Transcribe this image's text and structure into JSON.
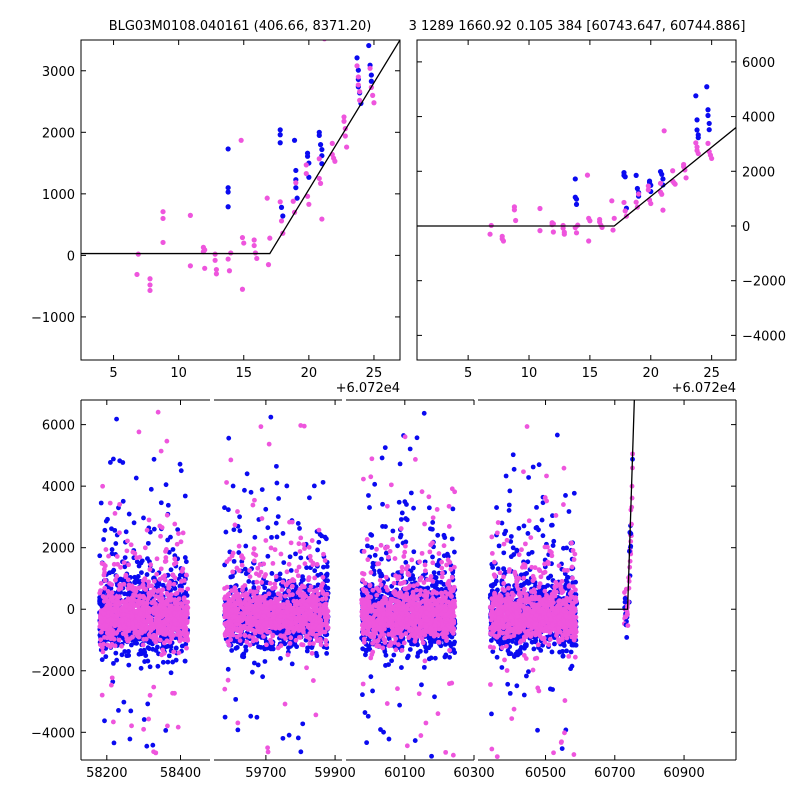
{
  "title": {
    "left": "BLG03M0108.040161 (406.66, 8371.20)",
    "right": "3 1289 1660.92 0.105 384 [60743.647, 60744.886]"
  },
  "colors": {
    "series_a": "#0a0af0",
    "series_b": "#ee55dd",
    "model": "#000000"
  },
  "chart_data": [
    {
      "type": "scatter",
      "panel": "top-left zoom",
      "xlim": [
        2.5,
        27
      ],
      "ylim": [
        -1700,
        3500
      ],
      "x_offset_label": "+6.072e4",
      "xticks": [
        5,
        10,
        15,
        20,
        25
      ],
      "yticks": [
        -1000,
        0,
        1000,
        2000,
        3000
      ],
      "ytick_side": "left",
      "model": {
        "x": [
          2.5,
          17,
          27
        ],
        "y": [
          30,
          30,
          3500
        ]
      },
      "series": [
        {
          "color": "blue",
          "points": [
            [
              13.8,
              1730
            ],
            [
              13.8,
              1100
            ],
            [
              13.8,
              1030
            ],
            [
              13.8,
              790
            ],
            [
              17.8,
              2040
            ],
            [
              17.8,
              1960
            ],
            [
              17.8,
              1830
            ],
            [
              17.9,
              780
            ],
            [
              18.0,
              640
            ],
            [
              18.9,
              1870
            ],
            [
              19.0,
              1380
            ],
            [
              19.0,
              1230
            ],
            [
              19.0,
              1100
            ],
            [
              19.1,
              930
            ],
            [
              19.9,
              1660
            ],
            [
              19.9,
              1610
            ],
            [
              20.0,
              1500
            ],
            [
              20.0,
              1270
            ],
            [
              20.8,
              2000
            ],
            [
              20.8,
              1950
            ],
            [
              20.9,
              1800
            ],
            [
              21.0,
              1720
            ],
            [
              21.0,
              1620
            ],
            [
              21.0,
              1490
            ],
            [
              23.7,
              3210
            ],
            [
              23.8,
              3010
            ],
            [
              23.8,
              2860
            ],
            [
              23.8,
              2740
            ],
            [
              23.9,
              2640
            ],
            [
              24.0,
              2470
            ],
            [
              24.6,
              3410
            ],
            [
              24.7,
              3090
            ],
            [
              24.8,
              2930
            ],
            [
              24.8,
              2830
            ]
          ]
        },
        {
          "color": "magenta",
          "points": [
            [
              6.8,
              -310
            ],
            [
              6.9,
              20
            ],
            [
              7.8,
              -380
            ],
            [
              7.8,
              -480
            ],
            [
              7.8,
              -570
            ],
            [
              8.8,
              710
            ],
            [
              8.8,
              600
            ],
            [
              8.8,
              210
            ],
            [
              10.9,
              650
            ],
            [
              10.9,
              -170
            ],
            [
              11.9,
              130
            ],
            [
              11.9,
              60
            ],
            [
              12.0,
              90
            ],
            [
              12.0,
              -210
            ],
            [
              12.8,
              20
            ],
            [
              12.8,
              -80
            ],
            [
              12.9,
              -230
            ],
            [
              12.9,
              -300
            ],
            [
              13.8,
              -60
            ],
            [
              13.9,
              -250
            ],
            [
              14.0,
              40
            ],
            [
              14.8,
              1870
            ],
            [
              14.9,
              -550
            ],
            [
              14.9,
              290
            ],
            [
              15.0,
              200
            ],
            [
              15.8,
              250
            ],
            [
              15.8,
              160
            ],
            [
              15.9,
              40
            ],
            [
              16.0,
              -50
            ],
            [
              16.8,
              930
            ],
            [
              16.9,
              -150
            ],
            [
              17.0,
              280
            ],
            [
              17.8,
              870
            ],
            [
              17.9,
              560
            ],
            [
              18.0,
              360
            ],
            [
              18.8,
              880
            ],
            [
              18.9,
              700
            ],
            [
              19.0,
              1180
            ],
            [
              19.8,
              1470
            ],
            [
              19.8,
              1330
            ],
            [
              19.9,
              960
            ],
            [
              20.0,
              830
            ],
            [
              20.8,
              1570
            ],
            [
              20.8,
              1250
            ],
            [
              20.9,
              1170
            ],
            [
              21.0,
              590
            ],
            [
              21.8,
              1820
            ],
            [
              21.8,
              1640
            ],
            [
              21.9,
              1580
            ],
            [
              22.0,
              1530
            ],
            [
              22.7,
              2250
            ],
            [
              22.7,
              2180
            ],
            [
              22.8,
              2060
            ],
            [
              22.8,
              1940
            ],
            [
              22.9,
              1760
            ],
            [
              23.7,
              3080
            ],
            [
              23.8,
              2900
            ],
            [
              23.8,
              2770
            ],
            [
              23.9,
              2660
            ],
            [
              23.9,
              2520
            ],
            [
              24.7,
              3040
            ],
            [
              24.8,
              2730
            ],
            [
              24.9,
              2600
            ],
            [
              25.0,
              2480
            ],
            [
              21.2,
              3520
            ]
          ]
        }
      ]
    },
    {
      "type": "scatter",
      "panel": "top-right zoom",
      "xlim": [
        0.8,
        27
      ],
      "ylim": [
        -4900,
        6800
      ],
      "x_offset_label": "+6.072e4",
      "xticks": [
        5,
        10,
        15,
        20,
        25
      ],
      "yticks": [
        -4000,
        -2000,
        0,
        2000,
        4000,
        6000
      ],
      "ytick_side": "right",
      "model": {
        "x": [
          0.8,
          17,
          27
        ],
        "y": [
          0,
          0,
          3600
        ]
      },
      "series": [
        {
          "color": "blue",
          "points": [
            [
              13.8,
              1720
            ],
            [
              13.8,
              1050
            ],
            [
              13.9,
              980
            ],
            [
              13.9,
              790
            ],
            [
              17.8,
              1950
            ],
            [
              17.8,
              1850
            ],
            [
              17.9,
              1800
            ],
            [
              18.0,
              650
            ],
            [
              18.8,
              1850
            ],
            [
              18.9,
              1370
            ],
            [
              19.0,
              1220
            ],
            [
              19.0,
              1090
            ],
            [
              19.9,
              1640
            ],
            [
              19.9,
              1590
            ],
            [
              20.0,
              1490
            ],
            [
              20.0,
              1260
            ],
            [
              20.8,
              1990
            ],
            [
              20.9,
              1890
            ],
            [
              21.0,
              1720
            ],
            [
              21.0,
              1500
            ],
            [
              23.7,
              4760
            ],
            [
              23.8,
              3880
            ],
            [
              23.8,
              3510
            ],
            [
              23.9,
              3330
            ],
            [
              23.9,
              3230
            ],
            [
              24.6,
              5090
            ],
            [
              24.7,
              4250
            ],
            [
              24.7,
              4040
            ],
            [
              24.8,
              3750
            ],
            [
              24.8,
              3520
            ]
          ]
        },
        {
          "color": "magenta",
          "points": [
            [
              6.8,
              -300
            ],
            [
              6.9,
              20
            ],
            [
              7.8,
              -380
            ],
            [
              7.8,
              -470
            ],
            [
              7.9,
              -550
            ],
            [
              8.8,
              700
            ],
            [
              8.8,
              590
            ],
            [
              8.9,
              200
            ],
            [
              10.9,
              640
            ],
            [
              10.9,
              -170
            ],
            [
              11.9,
              120
            ],
            [
              11.9,
              50
            ],
            [
              12.0,
              80
            ],
            [
              12.0,
              -220
            ],
            [
              12.8,
              20
            ],
            [
              12.8,
              -80
            ],
            [
              12.9,
              -230
            ],
            [
              12.9,
              -300
            ],
            [
              13.8,
              -60
            ],
            [
              13.9,
              -250
            ],
            [
              14.0,
              30
            ],
            [
              14.8,
              1860
            ],
            [
              14.9,
              -550
            ],
            [
              14.9,
              280
            ],
            [
              15.0,
              190
            ],
            [
              15.8,
              240
            ],
            [
              15.8,
              150
            ],
            [
              15.9,
              30
            ],
            [
              16.0,
              -50
            ],
            [
              16.8,
              920
            ],
            [
              16.9,
              -150
            ],
            [
              17.0,
              280
            ],
            [
              17.8,
              860
            ],
            [
              17.9,
              550
            ],
            [
              18.0,
              360
            ],
            [
              18.8,
              870
            ],
            [
              18.9,
              690
            ],
            [
              19.0,
              1170
            ],
            [
              19.8,
              1460
            ],
            [
              19.8,
              1320
            ],
            [
              19.9,
              950
            ],
            [
              20.0,
              820
            ],
            [
              20.8,
              1560
            ],
            [
              20.8,
              1240
            ],
            [
              20.9,
              1160
            ],
            [
              21.0,
              580
            ],
            [
              21.8,
              2020
            ],
            [
              21.8,
              1640
            ],
            [
              21.9,
              1580
            ],
            [
              22.0,
              1530
            ],
            [
              22.7,
              2250
            ],
            [
              22.7,
              2170
            ],
            [
              22.8,
              2050
            ],
            [
              22.9,
              1760
            ],
            [
              23.7,
              3040
            ],
            [
              23.8,
              2890
            ],
            [
              23.8,
              2760
            ],
            [
              23.9,
              2650
            ],
            [
              24.7,
              3020
            ],
            [
              24.8,
              2720
            ],
            [
              24.9,
              2590
            ],
            [
              25.0,
              2470
            ],
            [
              21.1,
              3480
            ]
          ]
        }
      ]
    },
    {
      "type": "scatter",
      "panel": "bottom full light curve (broken x-axis)",
      "ylim": [
        -4900,
        6800
      ],
      "yticks": [
        -4000,
        -2000,
        0,
        2000,
        4000,
        6000
      ],
      "ytick_side": "left",
      "segments": [
        {
          "xlim": [
            58130,
            58480
          ],
          "xticks": [
            58200,
            58400
          ],
          "data_x": [
            58180,
            58420
          ]
        },
        {
          "xlim": [
            59550,
            59920
          ],
          "xticks": [
            59700,
            59900
          ],
          "data_x": [
            59580,
            59880
          ]
        },
        {
          "xlim": [
            59930,
            60300
          ],
          "xticks": [
            60100,
            60300
          ],
          "data_x": [
            59975,
            60245
          ]
        },
        {
          "xlim": [
            60305,
            61050
          ],
          "xticks": [
            60500,
            60700,
            60900
          ],
          "data_x": [
            60340,
            60590
          ],
          "event_x": [
            60727,
            60752
          ]
        }
      ],
      "model": {
        "x": [
          60680,
          60737,
          60757
        ],
        "y": [
          0,
          0,
          7000
        ]
      },
      "series": [
        {
          "color": "blue",
          "spread_sd": 600,
          "high_tail": 6500
        },
        {
          "color": "magenta",
          "spread_sd": 380,
          "high_tail": 6700
        }
      ]
    }
  ]
}
